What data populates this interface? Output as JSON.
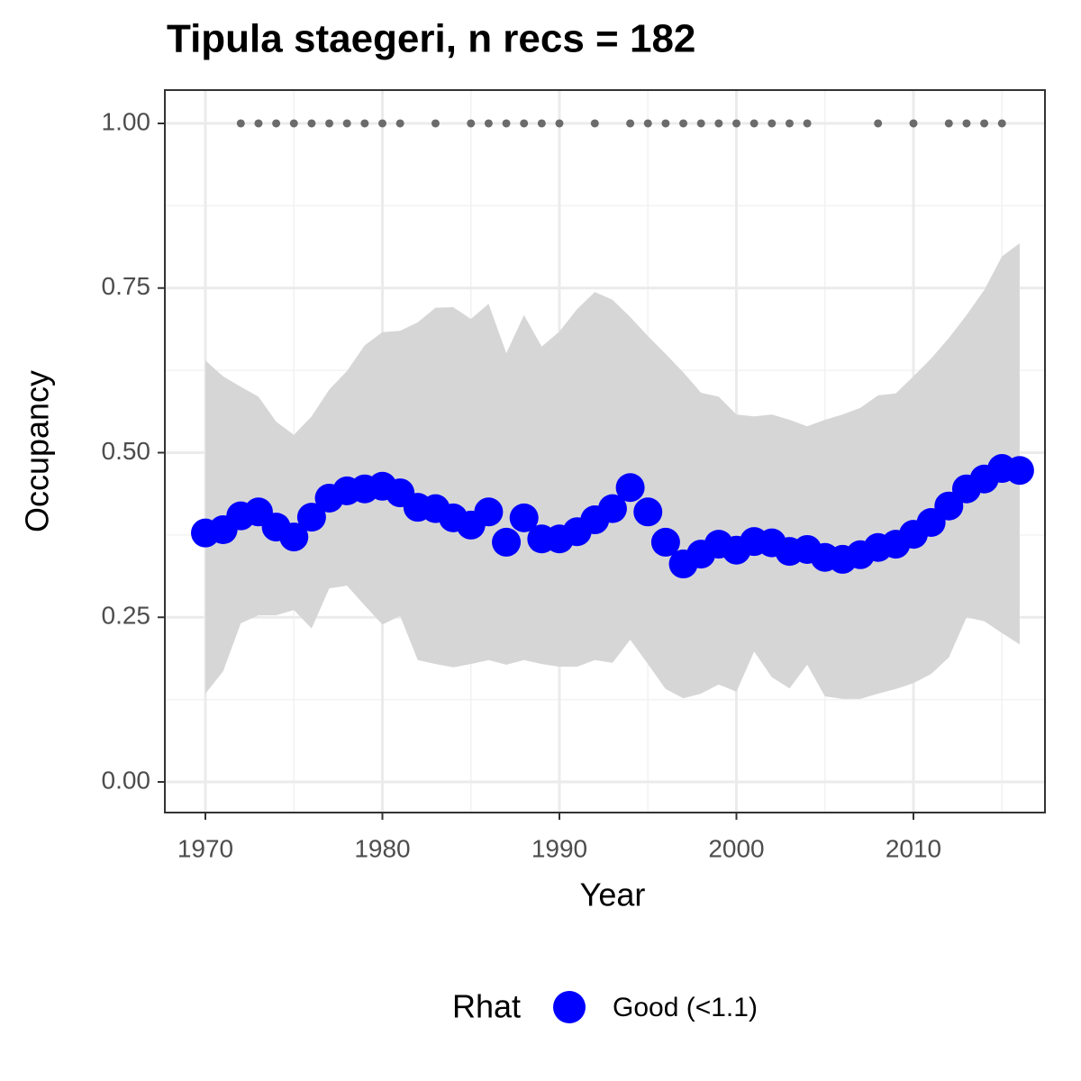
{
  "chart_data": {
    "type": "line",
    "title": "Tipula staegeri, n recs = 182",
    "x_label": "Year",
    "y_label": "Occupancy",
    "legend_title": "Rhat",
    "x": [
      1970,
      1971,
      1972,
      1973,
      1974,
      1975,
      1976,
      1977,
      1978,
      1979,
      1980,
      1981,
      1982,
      1983,
      1984,
      1985,
      1986,
      1987,
      1988,
      1989,
      1990,
      1991,
      1992,
      1993,
      1994,
      1995,
      1996,
      1997,
      1998,
      1999,
      2000,
      2001,
      2002,
      2003,
      2004,
      2005,
      2006,
      2007,
      2008,
      2009,
      2010,
      2011,
      2012,
      2013,
      2014,
      2015,
      2016
    ],
    "series": [
      {
        "name": "Good (<1.1)",
        "color": "#0000ff",
        "values": [
          0.378,
          0.383,
          0.404,
          0.41,
          0.387,
          0.372,
          0.402,
          0.431,
          0.442,
          0.445,
          0.449,
          0.439,
          0.417,
          0.415,
          0.401,
          0.39,
          0.41,
          0.364,
          0.401,
          0.369,
          0.369,
          0.38,
          0.398,
          0.415,
          0.447,
          0.41,
          0.364,
          0.331,
          0.346,
          0.361,
          0.352,
          0.365,
          0.363,
          0.35,
          0.353,
          0.341,
          0.338,
          0.345,
          0.356,
          0.361,
          0.376,
          0.394,
          0.419,
          0.445,
          0.46,
          0.476,
          0.473
        ]
      }
    ],
    "band": {
      "color": "#d6d6d6",
      "upper": [
        0.64,
        0.616,
        0.6,
        0.585,
        0.547,
        0.527,
        0.555,
        0.596,
        0.624,
        0.663,
        0.683,
        0.685,
        0.698,
        0.72,
        0.721,
        0.703,
        0.726,
        0.651,
        0.709,
        0.661,
        0.684,
        0.718,
        0.744,
        0.732,
        0.706,
        0.677,
        0.65,
        0.622,
        0.591,
        0.585,
        0.558,
        0.555,
        0.558,
        0.55,
        0.54,
        0.55,
        0.558,
        0.568,
        0.587,
        0.59,
        0.616,
        0.643,
        0.674,
        0.709,
        0.747,
        0.798,
        0.818
      ],
      "lower": [
        0.134,
        0.168,
        0.241,
        0.253,
        0.253,
        0.261,
        0.233,
        0.294,
        0.298,
        0.268,
        0.239,
        0.252,
        0.185,
        0.179,
        0.174,
        0.179,
        0.185,
        0.178,
        0.185,
        0.179,
        0.175,
        0.175,
        0.185,
        0.181,
        0.216,
        0.179,
        0.141,
        0.127,
        0.134,
        0.148,
        0.137,
        0.198,
        0.159,
        0.142,
        0.178,
        0.13,
        0.126,
        0.126,
        0.134,
        0.141,
        0.15,
        0.164,
        0.189,
        0.25,
        0.244,
        0.226,
        0.209
      ]
    },
    "records": {
      "color": "#6b6b6b",
      "x": [
        1972,
        1973,
        1974,
        1975,
        1976,
        1977,
        1978,
        1979,
        1980,
        1981,
        1983,
        1985,
        1986,
        1987,
        1988,
        1989,
        1990,
        1992,
        1994,
        1995,
        1996,
        1997,
        1998,
        1999,
        2000,
        2001,
        2002,
        2003,
        2004,
        2008,
        2010,
        2012,
        2013,
        2014,
        2015
      ],
      "values": [
        1,
        1,
        1,
        1,
        1,
        1,
        1,
        1,
        1,
        1,
        1,
        1,
        1,
        1,
        1,
        1,
        1,
        1,
        1,
        1,
        1,
        1,
        1,
        1,
        1,
        1,
        1,
        1,
        1,
        1,
        1,
        1,
        1,
        1,
        1
      ]
    },
    "xlim": [
      1967.71,
      2017.43
    ],
    "ylim": [
      -0.0465,
      1.0506
    ],
    "xticks": [
      1970,
      1980,
      1990,
      2000,
      2010
    ],
    "yticks": [
      {
        "value": 0,
        "label": "0.00"
      },
      {
        "value": 0.25,
        "label": "0.25"
      },
      {
        "value": 0.5,
        "label": "0.50"
      },
      {
        "value": 0.75,
        "label": "0.75"
      },
      {
        "value": 1,
        "label": "1.00"
      }
    ],
    "minor_xticks": [
      1975,
      1985,
      1995,
      2005,
      2015
    ],
    "minor_yticks": [
      0.125,
      0.375,
      0.625,
      0.875
    ],
    "grid": true
  }
}
